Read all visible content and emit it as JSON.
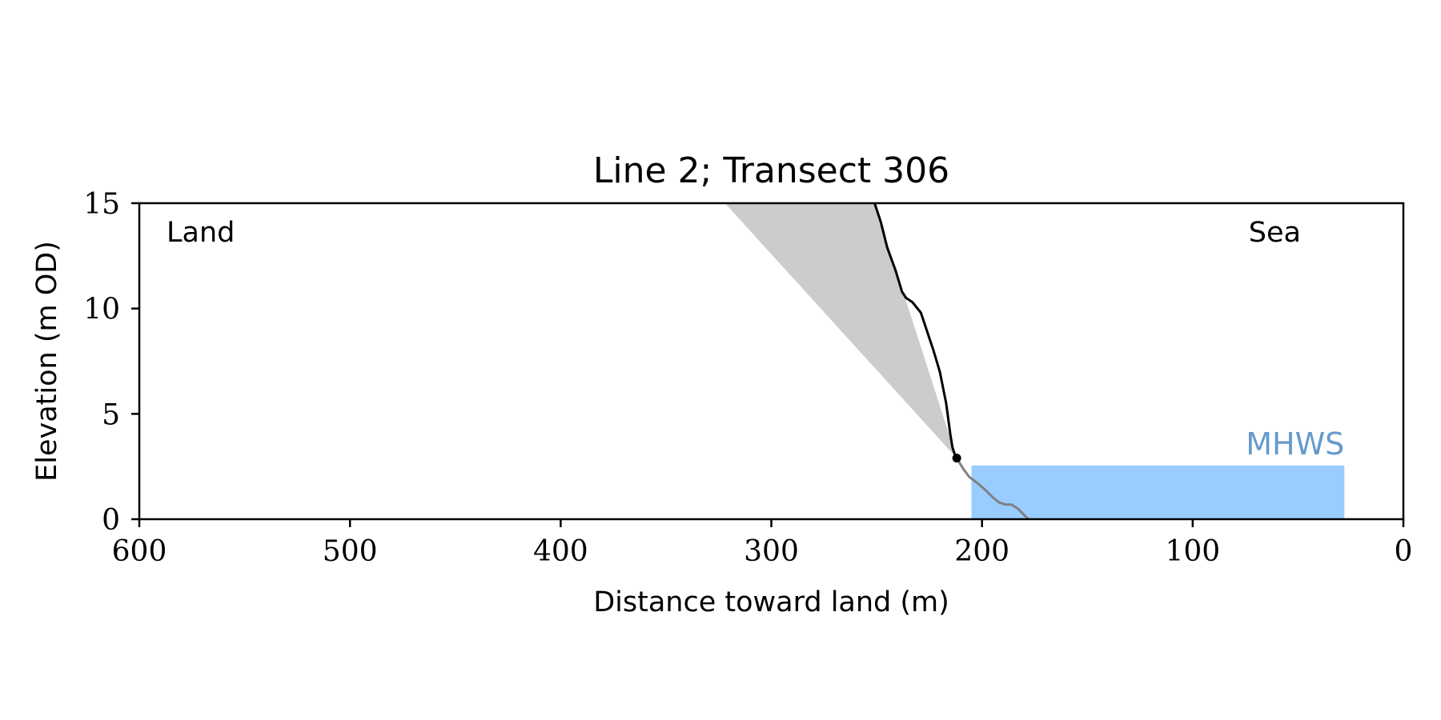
{
  "chart_data": {
    "type": "line",
    "title": "Line 2; Transect 306",
    "xlabel": "Distance toward land (m)",
    "ylabel": "Elevation (m OD)",
    "xlim": [
      600,
      0
    ],
    "ylim": [
      0,
      15
    ],
    "x_inverted": true,
    "grid": false,
    "x_ticks": [
      600,
      500,
      400,
      300,
      200,
      100,
      0
    ],
    "y_ticks": [
      0,
      5,
      10,
      15
    ],
    "annotations": {
      "land": "Land",
      "sea": "Sea",
      "mhws": "MHWS"
    },
    "colors": {
      "profile_upper": "#000000",
      "profile_lower": "#808080",
      "setback_fill": "#cccccc",
      "water_fill": "#99ccff",
      "mhws_text": "#6699cc"
    },
    "mhws_level": 2.55,
    "water_x_range": [
      205,
      28
    ],
    "cliff_toe": {
      "x": 212,
      "y": 2.9
    },
    "setback_polygon": [
      [
        322,
        15
      ],
      [
        251,
        15
      ],
      [
        212,
        2.9
      ]
    ],
    "profile_upper": {
      "x": [
        251,
        248,
        245,
        241,
        238,
        236,
        233,
        229,
        226,
        223,
        220,
        217,
        215,
        214,
        213,
        212
      ],
      "y": [
        15,
        14.1,
        12.9,
        11.8,
        10.8,
        10.5,
        10.3,
        9.8,
        8.9,
        8.0,
        7.0,
        5.5,
        4.0,
        3.4,
        3.1,
        2.9
      ]
    },
    "profile_lower": {
      "x": [
        212,
        209,
        206,
        202,
        198,
        195,
        192,
        189,
        186,
        183,
        180,
        178
      ],
      "y": [
        2.9,
        2.4,
        2.0,
        1.7,
        1.35,
        1.05,
        0.8,
        0.7,
        0.7,
        0.5,
        0.2,
        0.0
      ]
    }
  }
}
